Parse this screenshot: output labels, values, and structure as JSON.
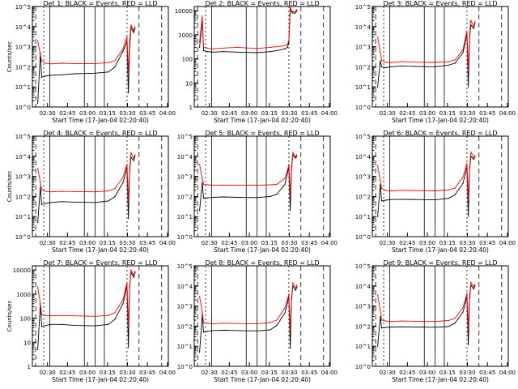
{
  "figure": {
    "x_tick_labels": [
      "02:30",
      "02:45",
      "03:00",
      "03:15",
      "03:30",
      "03:45",
      "04:00"
    ],
    "xlabel": "Start Time (17-Jan-04 02:20:40)",
    "ylabel": "Counts/sec",
    "title_suffix": "BLACK = Events, RED = LLD"
  },
  "colors": {
    "events": "#000000",
    "lld": "#ff0000",
    "axes": "#000000"
  },
  "chart_data": [
    {
      "type": "line",
      "panel": 1,
      "title": "Det 1: BLACK = Events, RED = LLD",
      "xlabel": "Start Time (17-Jan-04 02:20:40)",
      "ylabel": "Counts/sec",
      "x_ticks": [
        "02:30",
        "02:45",
        "03:00",
        "03:15",
        "03:30",
        "03:45",
        "04:00"
      ],
      "xlim_minutes_after_start": [
        -2,
        100
      ],
      "y_scale": "log",
      "ylim": [
        1,
        100000
      ],
      "y_tick_labels": [
        "10^0",
        "10^1",
        "10^2",
        "10^3",
        "10^4",
        "10^5"
      ],
      "series": [
        {
          "name": "Events",
          "x": [
            2,
            4,
            5,
            8,
            12,
            20,
            30,
            45,
            55,
            60,
            66,
            68,
            69,
            70,
            71,
            72,
            74,
            75
          ],
          "y": [
            1.5,
            500,
            30,
            35,
            38,
            40,
            45,
            48,
            55,
            100,
            600,
            1200,
            2000,
            5,
            1000,
            9000,
            5000,
            8000
          ]
        },
        {
          "name": "LLD",
          "x": [
            2,
            4,
            5,
            8,
            12,
            20,
            30,
            45,
            55,
            60,
            66,
            68,
            69,
            70,
            71,
            72,
            74,
            75
          ],
          "y": [
            2000,
            400,
            200,
            150,
            140,
            150,
            145,
            145,
            160,
            200,
            800,
            2000,
            3000,
            50,
            2000,
            12000,
            6000,
            10000
          ]
        }
      ]
    },
    {
      "type": "line",
      "panel": 2,
      "title": "Det 2: BLACK = Events, RED = LLD",
      "xlabel": "Start Time (17-Jan-04 02:20:40)",
      "ylabel": "",
      "x_ticks": [
        "02:30",
        "02:45",
        "03:00",
        "03:15",
        "03:30",
        "03:45",
        "04:00"
      ],
      "xlim_minutes_after_start": [
        -2,
        100
      ],
      "y_scale": "log",
      "ylim": [
        1,
        15000
      ],
      "y_tick_labels": [
        "1",
        "10",
        "100",
        "1000",
        "10000"
      ],
      "series": [
        {
          "name": "Events",
          "x": [
            2,
            4,
            5,
            8,
            12,
            20,
            30,
            45,
            55,
            60,
            66,
            68,
            69,
            70,
            71,
            72,
            74,
            75
          ],
          "y": [
            300,
            4000,
            220,
            200,
            190,
            200,
            190,
            180,
            200,
            220,
            260,
            300,
            500,
            12000,
            9000,
            8000,
            8000,
            10000
          ]
        },
        {
          "name": "LLD",
          "x": [
            2,
            4,
            5,
            8,
            12,
            20,
            30,
            45,
            55,
            60,
            66,
            68,
            69,
            70,
            71,
            72,
            74,
            75
          ],
          "y": [
            500,
            6000,
            300,
            280,
            260,
            280,
            300,
            270,
            300,
            320,
            350,
            400,
            600,
            15000,
            10000,
            9000,
            9500,
            11000
          ]
        }
      ]
    },
    {
      "type": "line",
      "panel": 3,
      "title": "Det 3: BLACK = Events, RED = LLD",
      "xlabel": "Start Time (17-Jan-04 02:20:40)",
      "ylabel": "",
      "x_ticks": [
        "02:30",
        "02:45",
        "03:00",
        "03:15",
        "03:30",
        "03:45",
        "04:00"
      ],
      "xlim_minutes_after_start": [
        -2,
        100
      ],
      "y_scale": "log",
      "ylim": [
        1,
        100000
      ],
      "y_tick_labels": [
        "10^0",
        "10^1",
        "10^2",
        "10^3",
        "10^4",
        "10^5"
      ],
      "series": [
        {
          "name": "Events",
          "x": [
            2,
            4,
            5,
            8,
            12,
            20,
            30,
            45,
            55,
            60,
            66,
            68,
            69,
            70,
            71,
            72,
            74,
            75
          ],
          "y": [
            10,
            200,
            100,
            90,
            100,
            110,
            105,
            100,
            120,
            150,
            500,
            2000,
            5000,
            10,
            3000,
            12000,
            8000,
            15000
          ]
        },
        {
          "name": "LLD",
          "x": [
            2,
            4,
            5,
            8,
            12,
            20,
            30,
            45,
            55,
            60,
            66,
            68,
            69,
            70,
            71,
            72,
            74,
            75
          ],
          "y": [
            3000,
            500,
            200,
            170,
            160,
            180,
            170,
            165,
            180,
            220,
            700,
            3000,
            6000,
            60,
            4000,
            20000,
            10000,
            18000
          ]
        }
      ]
    },
    {
      "type": "line",
      "panel": 4,
      "title": "Det 4: BLACK = Events, RED = LLD",
      "xlabel": "Start Time (17-Jan-04 02:20:40)",
      "ylabel": "Counts/sec",
      "x_ticks": [
        "02:30",
        "02:45",
        "03:00",
        "03:15",
        "03:30",
        "03:45",
        "04:00"
      ],
      "xlim_minutes_after_start": [
        -2,
        100
      ],
      "y_scale": "log",
      "ylim": [
        1,
        100000
      ],
      "y_tick_labels": [
        "10^0",
        "10^1",
        "10^2",
        "10^3",
        "10^4",
        "10^5"
      ],
      "series": [
        {
          "name": "Events",
          "x": [
            2,
            4,
            5,
            8,
            12,
            20,
            30,
            45,
            55,
            60,
            66,
            68,
            69,
            70,
            71,
            72,
            74,
            75
          ],
          "y": [
            5,
            300,
            40,
            45,
            50,
            55,
            52,
            50,
            60,
            100,
            500,
            1500,
            3000,
            8,
            2000,
            9000,
            6000,
            10000
          ]
        },
        {
          "name": "LLD",
          "x": [
            2,
            4,
            5,
            8,
            12,
            20,
            30,
            45,
            55,
            60,
            66,
            68,
            69,
            70,
            71,
            72,
            74,
            75
          ],
          "y": [
            2500,
            500,
            220,
            180,
            170,
            180,
            175,
            170,
            190,
            250,
            900,
            2500,
            4000,
            60,
            2500,
            15000,
            8000,
            12000
          ]
        }
      ]
    },
    {
      "type": "line",
      "panel": 5,
      "title": "Det 5: BLACK = Events, RED = LLD",
      "xlabel": "Start Time (17-Jan-04 02:20:40)",
      "ylabel": "",
      "x_ticks": [
        "02:30",
        "02:45",
        "03:00",
        "03:15",
        "03:30",
        "03:45",
        "04:00"
      ],
      "xlim_minutes_after_start": [
        -2,
        100
      ],
      "y_scale": "log",
      "ylim": [
        1,
        100000
      ],
      "y_tick_labels": [
        "10^0",
        "10^1",
        "10^2",
        "10^3",
        "10^4",
        "10^5"
      ],
      "series": [
        {
          "name": "Events",
          "x": [
            2,
            4,
            5,
            8,
            12,
            20,
            30,
            45,
            55,
            60,
            66,
            68,
            69,
            70,
            71,
            72,
            74,
            75
          ],
          "y": [
            20,
            500,
            80,
            85,
            90,
            95,
            90,
            88,
            100,
            130,
            400,
            1500,
            3000,
            20,
            2500,
            12000,
            8000,
            10000
          ]
        },
        {
          "name": "LLD",
          "x": [
            2,
            4,
            5,
            8,
            12,
            20,
            30,
            45,
            55,
            60,
            66,
            68,
            69,
            70,
            71,
            72,
            74,
            75
          ],
          "y": [
            4000,
            800,
            400,
            380,
            360,
            370,
            365,
            360,
            380,
            400,
            800,
            2000,
            4000,
            100,
            3000,
            15000,
            9000,
            12000
          ]
        }
      ]
    },
    {
      "type": "line",
      "panel": 6,
      "title": "Det 6: BLACK = Events, RED = LLD",
      "xlabel": "Start Time (17-Jan-04 02:20:40)",
      "ylabel": "",
      "x_ticks": [
        "02:30",
        "02:45",
        "03:00",
        "03:15",
        "03:30",
        "03:45",
        "04:00"
      ],
      "xlim_minutes_after_start": [
        -2,
        100
      ],
      "y_scale": "log",
      "ylim": [
        1,
        100000
      ],
      "y_tick_labels": [
        "10^0",
        "10^1",
        "10^2",
        "10^3",
        "10^4",
        "10^5"
      ],
      "series": [
        {
          "name": "Events",
          "x": [
            2,
            4,
            5,
            8,
            12,
            20,
            30,
            45,
            55,
            60,
            66,
            68,
            69,
            70,
            71,
            72,
            74,
            75
          ],
          "y": [
            10,
            400,
            60,
            65,
            70,
            72,
            70,
            68,
            80,
            120,
            450,
            1500,
            3000,
            10,
            2500,
            10000,
            7000,
            9000
          ]
        },
        {
          "name": "LLD",
          "x": [
            2,
            4,
            5,
            8,
            12,
            20,
            30,
            45,
            55,
            60,
            66,
            68,
            69,
            70,
            71,
            72,
            74,
            75
          ],
          "y": [
            3500,
            600,
            250,
            200,
            190,
            200,
            195,
            190,
            210,
            260,
            900,
            2500,
            4500,
            70,
            3000,
            16000,
            9000,
            11000
          ]
        }
      ]
    },
    {
      "type": "line",
      "panel": 7,
      "title": "Det 7: BLACK = Events, RED = LLD",
      "xlabel": "Start Time (17-Jan-04 02:20:40)",
      "ylabel": "Counts/sec",
      "x_ticks": [
        "02:30",
        "02:45",
        "03:00",
        "03:15",
        "03:30",
        "03:45",
        "04:00"
      ],
      "xlim_minutes_after_start": [
        -2,
        100
      ],
      "y_scale": "log",
      "ylim": [
        1,
        15000
      ],
      "y_tick_labels": [
        "1",
        "10",
        "100",
        "1000",
        "10000"
      ],
      "series": [
        {
          "name": "Events",
          "x": [
            2,
            4,
            5,
            8,
            12,
            20,
            30,
            45,
            55,
            60,
            66,
            68,
            69,
            70,
            71,
            72,
            74,
            75
          ],
          "y": [
            5,
            400,
            45,
            50,
            55,
            55,
            50,
            48,
            55,
            90,
            400,
            1200,
            2500,
            6,
            2000,
            8000,
            5000,
            8000
          ]
        },
        {
          "name": "LLD",
          "x": [
            2,
            4,
            5,
            8,
            12,
            20,
            30,
            45,
            55,
            60,
            66,
            68,
            69,
            70,
            71,
            72,
            74,
            75
          ],
          "y": [
            2000,
            400,
            140,
            130,
            125,
            130,
            125,
            120,
            130,
            170,
            600,
            1800,
            3000,
            40,
            2200,
            10000,
            6000,
            9000
          ]
        }
      ]
    },
    {
      "type": "line",
      "panel": 8,
      "title": "Det 8: BLACK = Events, RED = LLD",
      "xlabel": "Start Time (17-Jan-04 02:20:40)",
      "ylabel": "",
      "x_ticks": [
        "02:30",
        "02:45",
        "03:00",
        "03:15",
        "03:30",
        "03:45",
        "04:00"
      ],
      "xlim_minutes_after_start": [
        -2,
        100
      ],
      "y_scale": "log",
      "ylim": [
        1,
        100000
      ],
      "y_tick_labels": [
        "10^0",
        "10^1",
        "10^2",
        "10^3",
        "10^4",
        "10^5"
      ],
      "series": [
        {
          "name": "Events",
          "x": [
            2,
            4,
            5,
            8,
            12,
            20,
            30,
            45,
            55,
            60,
            66,
            68,
            69,
            70,
            71,
            72,
            74,
            75
          ],
          "y": [
            5,
            400,
            50,
            55,
            60,
            62,
            60,
            58,
            65,
            110,
            450,
            1500,
            3000,
            8,
            2200,
            10000,
            6000,
            9000
          ]
        },
        {
          "name": "LLD",
          "x": [
            2,
            4,
            5,
            8,
            12,
            20,
            30,
            45,
            55,
            60,
            66,
            68,
            69,
            70,
            71,
            72,
            74,
            75
          ],
          "y": [
            3000,
            500,
            150,
            140,
            130,
            140,
            135,
            130,
            150,
            200,
            800,
            2200,
            4000,
            50,
            2600,
            14000,
            8000,
            11000
          ]
        }
      ]
    },
    {
      "type": "line",
      "panel": 9,
      "title": "Det 9: BLACK = Events, RED = LLD",
      "xlabel": "Start Time (17-Jan-04 02:20:40)",
      "ylabel": "",
      "x_ticks": [
        "02:30",
        "02:45",
        "03:00",
        "03:15",
        "03:30",
        "03:45",
        "04:00"
      ],
      "xlim_minutes_after_start": [
        -2,
        100
      ],
      "y_scale": "log",
      "ylim": [
        1,
        100000
      ],
      "y_tick_labels": [
        "10^0",
        "10^1",
        "10^2",
        "10^3",
        "10^4",
        "10^5"
      ],
      "series": [
        {
          "name": "Events",
          "x": [
            2,
            4,
            5,
            8,
            12,
            20,
            30,
            45,
            55,
            60,
            66,
            68,
            69,
            70,
            71,
            72,
            74,
            75
          ],
          "y": [
            10,
            300,
            80,
            85,
            90,
            92,
            90,
            88,
            95,
            140,
            500,
            1600,
            3200,
            12,
            2600,
            11000,
            7000,
            10000
          ]
        },
        {
          "name": "LLD",
          "x": [
            2,
            4,
            5,
            8,
            12,
            20,
            30,
            45,
            55,
            60,
            66,
            68,
            69,
            70,
            71,
            72,
            74,
            75
          ],
          "y": [
            3500,
            600,
            200,
            180,
            170,
            180,
            175,
            170,
            190,
            240,
            850,
            2400,
            4200,
            80,
            2900,
            15000,
            9000,
            12000
          ]
        }
      ]
    }
  ]
}
